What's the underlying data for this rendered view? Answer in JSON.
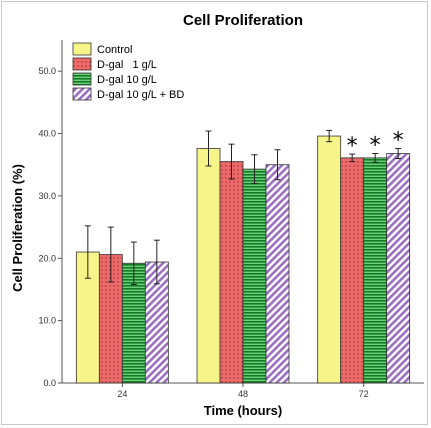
{
  "chart_data": {
    "type": "bar",
    "title": "Cell Proliferation",
    "xlabel": "Time (hours)",
    "ylabel": "Cell Proliferation (%)",
    "ylim": [
      0,
      55
    ],
    "yticks": [
      "0.0",
      "10.0",
      "20.0",
      "30.0",
      "40.0",
      "50.0"
    ],
    "categories": [
      "24",
      "48",
      "72"
    ],
    "legend_position": "top-left",
    "grid": false,
    "series": [
      {
        "name": "Control",
        "color": "#f7f58a",
        "pattern": "solid",
        "values": [
          21.0,
          37.6,
          39.6
        ],
        "errors": [
          4.2,
          2.8,
          0.9
        ],
        "significant": [
          false,
          false,
          false
        ]
      },
      {
        "name": "D-gal   1 g/L",
        "color": "#ee6a6a",
        "pattern": "dots",
        "values": [
          20.6,
          35.5,
          36.1
        ],
        "errors": [
          4.4,
          2.8,
          0.6
        ],
        "significant": [
          false,
          false,
          true
        ]
      },
      {
        "name": "D-gal 10 g/L",
        "color": "#26a13a",
        "pattern": "hlines",
        "values": [
          19.2,
          34.3,
          36.1
        ],
        "errors": [
          3.4,
          2.3,
          0.7
        ],
        "significant": [
          false,
          false,
          true
        ]
      },
      {
        "name": "D-gal 10 g/L + BD",
        "color": "#9a6fc4",
        "pattern": "diagonal",
        "values": [
          19.4,
          35.0,
          36.8
        ],
        "errors": [
          3.5,
          2.4,
          0.8
        ],
        "significant": [
          false,
          false,
          true
        ]
      }
    ],
    "significance_marker": "*"
  }
}
